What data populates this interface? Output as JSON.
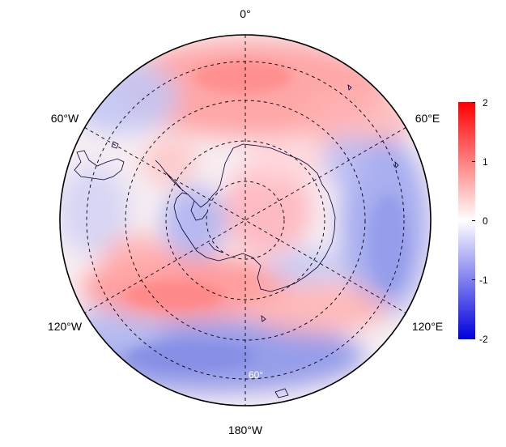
{
  "map": {
    "projection": "south-polar-stereographic",
    "longitude_labels": {
      "top": "0°",
      "upper_left": "60°W",
      "upper_right": "60°E",
      "lower_left": "120°W",
      "lower_right": "120°E",
      "bottom": "180°W"
    },
    "latitude_label": "60°",
    "graticule_style": "dashed",
    "coastlines": true
  },
  "colorbar": {
    "colors": {
      "max": "#ff0000",
      "mid": "#ffffff",
      "min": "#0000dd"
    },
    "range": [
      -2,
      2
    ],
    "ticks": [
      "2",
      "1",
      "0",
      "-1",
      "-2"
    ]
  },
  "field_anomalies": [
    {
      "region": "weddell-sea-outer",
      "level": 0.6
    },
    {
      "region": "pacific-sector-outer",
      "level": -0.9
    },
    {
      "region": "indian-ocean-east",
      "level": -0.7
    },
    {
      "region": "ross-amundsen-band",
      "level": 0.9
    },
    {
      "region": "east-antarctic-interior",
      "level": 0.4
    },
    {
      "region": "west-antarctica",
      "level": -0.5
    }
  ]
}
